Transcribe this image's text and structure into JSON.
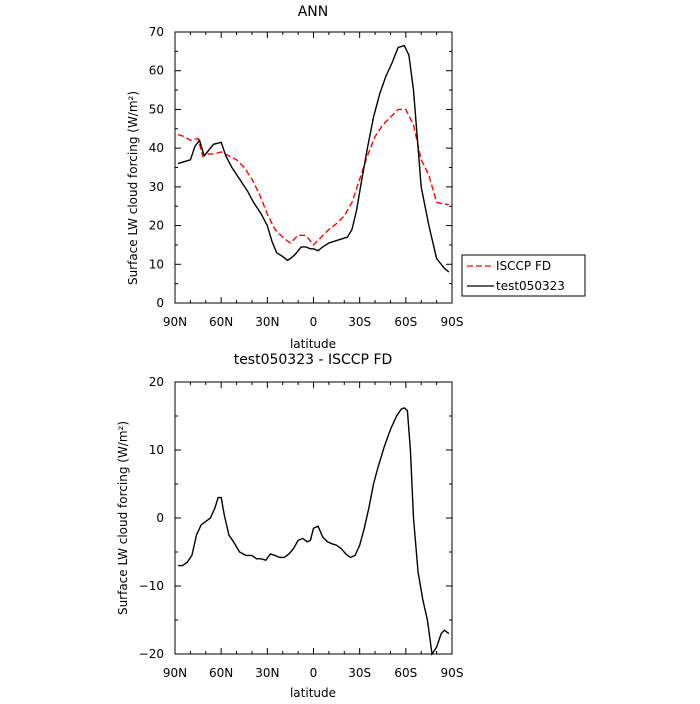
{
  "chart_data": [
    {
      "type": "line",
      "title": "ANN",
      "xlabel": "latitude",
      "ylabel": "Surface LW cloud forcing (W/m²)",
      "xlim": [
        90,
        -90
      ],
      "ylim": [
        0,
        70
      ],
      "x_ticks": [
        90,
        60,
        30,
        0,
        -30,
        -60,
        -90
      ],
      "x_tick_labels": [
        "90N",
        "60N",
        "30N",
        "0",
        "30S",
        "60S",
        "90S"
      ],
      "y_ticks": [
        0,
        10,
        20,
        30,
        40,
        50,
        60,
        70
      ],
      "y_tick_labels": [
        "0",
        "10",
        "20",
        "30",
        "40",
        "50",
        "60",
        "70"
      ],
      "legend_position": "outside-right",
      "series": [
        {
          "name": "ISCCP FD",
          "color": "#ff0000",
          "dash": "dashed",
          "x": [
            88,
            84,
            80,
            75,
            72,
            69,
            65,
            60,
            55,
            50,
            45,
            40,
            35,
            30,
            25,
            20,
            15,
            10,
            5,
            0,
            -5,
            -10,
            -15,
            -20,
            -25,
            -30,
            -35,
            -40,
            -45,
            -50,
            -55,
            -60,
            -65,
            -70,
            -75,
            -80,
            -85,
            -88
          ],
          "y": [
            43.5,
            43,
            42,
            42.5,
            38,
            38.5,
            38.5,
            39,
            38,
            37,
            35,
            32,
            28,
            23,
            19,
            17,
            15.5,
            17.5,
            17.5,
            15,
            17,
            19,
            20.5,
            22.5,
            26,
            32,
            38,
            43,
            46,
            48,
            50,
            50,
            46,
            37,
            33,
            26,
            25.5,
            25.5
          ]
        },
        {
          "name": "test050323",
          "color": "#000000",
          "dash": "solid",
          "x": [
            88,
            84,
            80,
            77,
            74,
            71,
            65,
            60,
            57,
            53,
            48,
            43,
            39,
            34,
            30,
            27,
            24,
            20,
            17,
            15,
            12,
            8,
            5,
            2,
            0,
            -3,
            -6,
            -10,
            -14,
            -18,
            -22,
            -25,
            -28,
            -31,
            -35,
            -39,
            -43,
            -47,
            -51,
            -55,
            -59,
            -62,
            -65,
            -70,
            -75,
            -80,
            -85,
            -88
          ],
          "y": [
            36,
            36.5,
            37,
            40.5,
            42,
            38,
            41,
            41.5,
            38,
            35,
            32,
            29,
            26,
            23,
            20,
            16,
            13,
            12,
            11,
            11.5,
            12.5,
            14.5,
            14.5,
            14,
            14,
            13.5,
            14.5,
            15.5,
            16,
            16.5,
            17,
            19,
            24,
            31,
            40,
            48,
            54,
            58.5,
            62,
            66,
            66.5,
            64,
            55,
            30,
            20,
            11.5,
            9,
            8
          ]
        }
      ]
    },
    {
      "type": "line",
      "title": "test050323 - ISCCP FD",
      "xlabel": "latitude",
      "ylabel": "Surface LW cloud forcing (W/m²)",
      "xlim": [
        90,
        -90
      ],
      "ylim": [
        -20,
        20
      ],
      "x_ticks": [
        90,
        60,
        30,
        0,
        -30,
        -60,
        -90
      ],
      "x_tick_labels": [
        "90N",
        "60N",
        "30N",
        "0",
        "30S",
        "60S",
        "90S"
      ],
      "y_ticks": [
        -20,
        -10,
        0,
        10,
        20
      ],
      "y_tick_labels": [
        "−20",
        "−10",
        "0",
        "10",
        "20"
      ],
      "series": [
        {
          "color": "#000000",
          "dash": "solid",
          "x": [
            88,
            85,
            82,
            79,
            76,
            73,
            70,
            67,
            64,
            62,
            60,
            58,
            55,
            52,
            48,
            44,
            40,
            37,
            34,
            31,
            28,
            25,
            22,
            19,
            16,
            13,
            10,
            7,
            4,
            2,
            0,
            -3,
            -6,
            -9,
            -12,
            -15,
            -18,
            -21,
            -24,
            -27,
            -30,
            -33,
            -36,
            -39,
            -42,
            -46,
            -50,
            -54,
            -57,
            -59,
            -61,
            -63,
            -65,
            -68,
            -71,
            -74,
            -77,
            -80,
            -83,
            -85,
            -88
          ],
          "y": [
            -7,
            -7,
            -6.5,
            -5.5,
            -2.5,
            -1,
            -0.5,
            0,
            1.5,
            3,
            3,
            0.5,
            -2.5,
            -3.5,
            -5,
            -5.5,
            -5.5,
            -6,
            -6,
            -6.2,
            -5.3,
            -5.5,
            -5.8,
            -5.8,
            -5.3,
            -4.5,
            -3.3,
            -3,
            -3.5,
            -3.3,
            -1.5,
            -1.2,
            -2.8,
            -3.5,
            -3.8,
            -4,
            -4.5,
            -5.3,
            -5.8,
            -5.5,
            -4,
            -1.5,
            1.5,
            5,
            7.5,
            10.5,
            13,
            15,
            16,
            16.2,
            15.8,
            10,
            0,
            -8,
            -12,
            -15,
            -20,
            -19,
            -17,
            -16.5,
            -17
          ]
        }
      ]
    }
  ]
}
